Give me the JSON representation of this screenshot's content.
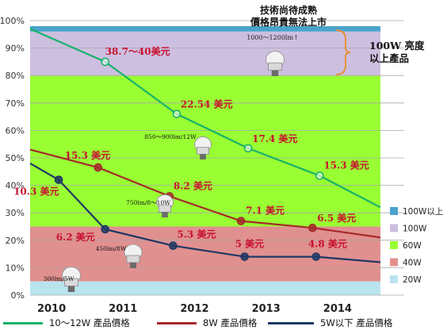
{
  "chart_data": {
    "type": "line",
    "x": [
      "2010",
      "2011",
      "2012",
      "2013",
      "2014"
    ],
    "x_numeric": [
      2010,
      2011,
      2012,
      2013,
      2014
    ],
    "ylim": [
      0,
      100
    ],
    "y_ticks": [
      "0%",
      "10%",
      "20%",
      "30%",
      "40%",
      "50%",
      "60%",
      "70%",
      "80%",
      "90%",
      "100%"
    ],
    "grid": true,
    "background_bands": [
      {
        "name": "100W以上",
        "from": 96,
        "to": 98,
        "color": "#4aa3cc"
      },
      {
        "name": "100W",
        "from": 80,
        "to": 96,
        "color": "#cdbfe0"
      },
      {
        "name": "60W",
        "from": 25,
        "to": 80,
        "color": "#99ff33"
      },
      {
        "name": "40W",
        "from": 5,
        "to": 25,
        "color": "#e0908f"
      },
      {
        "name": "20W",
        "from": 0,
        "to": 5,
        "color": "#b9e4ee"
      }
    ],
    "series": [
      {
        "name": "10～12W 產品價格",
        "color": "#17b26a",
        "line": [
          [
            2009.7,
            97
          ],
          [
            2010.75,
            85
          ],
          [
            2011.75,
            66
          ],
          [
            2012.75,
            53.5
          ],
          [
            2013.75,
            43.5
          ],
          [
            2014.6,
            32
          ]
        ],
        "points": [
          [
            2010.75,
            85
          ],
          [
            2011.75,
            66
          ],
          [
            2012.75,
            53.5
          ],
          [
            2013.75,
            43.5
          ]
        ],
        "labels": [
          "38.7～40美元",
          "22.54 美元",
          "17.4 美元",
          "15.3 美元"
        ]
      },
      {
        "name": "8W 產品價格",
        "color": "#a52a2a",
        "line": [
          [
            2009.7,
            53
          ],
          [
            2010.65,
            46.5
          ],
          [
            2011.65,
            36
          ],
          [
            2012.65,
            27
          ],
          [
            2013.65,
            24.5
          ],
          [
            2014.6,
            21
          ]
        ],
        "points": [
          [
            2010.65,
            46.5
          ],
          [
            2011.65,
            36
          ],
          [
            2012.65,
            27
          ],
          [
            2013.65,
            24.5
          ]
        ],
        "labels": [
          "15.3 美元",
          "8.2 美元",
          "7.1 美元",
          "6.5 美元"
        ]
      },
      {
        "name": "5W以下 產品價格",
        "color": "#1f3864",
        "line": [
          [
            2009.7,
            48
          ],
          [
            2010.1,
            42
          ],
          [
            2010.75,
            24
          ],
          [
            2011.7,
            18
          ],
          [
            2012.7,
            14
          ],
          [
            2013.7,
            14
          ],
          [
            2014.6,
            12
          ]
        ],
        "points": [
          [
            2010.1,
            42
          ],
          [
            2010.75,
            24
          ],
          [
            2011.7,
            18
          ],
          [
            2012.7,
            14
          ],
          [
            2013.7,
            14
          ]
        ],
        "labels": [
          "10.3 美元",
          "6.2 美元",
          "5.3 美元",
          "5 美元",
          "4.8 美元"
        ]
      }
    ],
    "annotations": {
      "top_note_line1": "技術尚待成熟",
      "top_note_line2": "價格昂貴無法上市",
      "range_100w": "1000～1200lm↑",
      "label_100w_line1": "100W 亮度",
      "label_100w_line2": "以上產品",
      "bulb_labels": [
        "850～900lm/12W",
        "750lm/8～10W",
        "450lm/8W",
        "300lm/5W"
      ]
    },
    "legend_position": "right"
  }
}
